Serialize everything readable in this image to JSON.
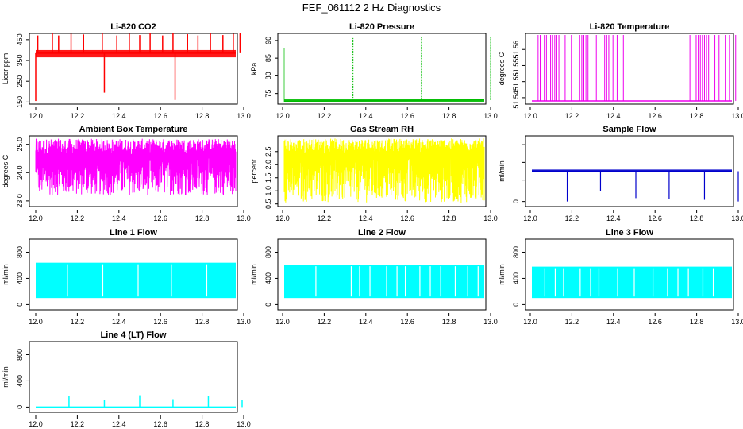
{
  "title": "FEF_061112  2 Hz Diagnostics",
  "chart_data": [
    {
      "type": "line",
      "title": "Li-820 CO2",
      "ylabel": "Licor ppm",
      "color": "#ff0000",
      "xlim": [
        12.0,
        13.0
      ],
      "ylim": [
        140,
        480
      ],
      "xticks": [
        "12.0",
        "12.2",
        "12.4",
        "12.6",
        "12.8",
        "13.0"
      ],
      "yticks": [
        "150",
        "250",
        "350",
        "450"
      ],
      "series": [
        {
          "x": [
            12.0,
            13.0
          ],
          "y": [
            385,
            385
          ],
          "band": [
            365,
            400
          ],
          "spikes": [
            [
              12.0,
              155
            ],
            [
              12.01,
              470
            ],
            [
              12.08,
              480
            ],
            [
              12.11,
              470
            ],
            [
              12.17,
              478
            ],
            [
              12.23,
              475
            ],
            [
              12.32,
              480
            ],
            [
              12.33,
              195
            ],
            [
              12.39,
              470
            ],
            [
              12.45,
              478
            ],
            [
              12.5,
              472
            ],
            [
              12.55,
              480
            ],
            [
              12.61,
              470
            ],
            [
              12.66,
              480
            ],
            [
              12.67,
              160
            ],
            [
              12.73,
              476
            ],
            [
              12.78,
              470
            ],
            [
              12.84,
              480
            ],
            [
              12.9,
              472
            ],
            [
              12.95,
              478
            ],
            [
              12.99,
              480
            ]
          ]
        }
      ]
    },
    {
      "type": "line",
      "title": "Li-820 Pressure",
      "ylabel": "kPa",
      "color": "#00bb00",
      "xlim": [
        12.0,
        13.0
      ],
      "ylim": [
        72,
        92
      ],
      "xticks": [
        "12.0",
        "12.2",
        "12.4",
        "12.6",
        "12.8",
        "13.0"
      ],
      "yticks": [
        "75",
        "80",
        "85",
        "90"
      ],
      "series": [
        {
          "x": [
            12.0,
            13.0
          ],
          "y": [
            72.8,
            73.2
          ],
          "band": [
            72.6,
            73.4
          ],
          "spikes": [
            [
              12.0,
              88
            ],
            [
              12.33,
              91
            ],
            [
              12.66,
              91
            ],
            [
              13.0,
              91
            ]
          ]
        }
      ]
    },
    {
      "type": "line",
      "title": "Li-820 Temperature",
      "ylabel": "degrees C",
      "color": "#ee00ee",
      "xlim": [
        12.0,
        13.0
      ],
      "ylim": [
        51.543,
        51.565
      ],
      "xticks": [
        "12.0",
        "12.2",
        "12.4",
        "12.6",
        "12.8",
        "13.0"
      ],
      "yticks": [
        "51.545",
        "51.55",
        "51.555",
        "51.56"
      ],
      "series": [
        {
          "x": [
            12.0,
            13.0
          ],
          "y": [
            51.544,
            51.544
          ],
          "toggles": [
            12.03,
            12.04,
            12.06,
            12.07,
            12.09,
            12.1,
            12.11,
            12.12,
            12.13,
            12.16,
            12.19,
            12.23,
            12.24,
            12.25,
            12.26,
            12.27,
            12.31,
            12.35,
            12.36,
            12.37,
            12.39,
            12.41,
            12.44,
            12.76,
            12.79,
            12.8,
            12.81,
            12.82,
            12.83,
            12.84,
            12.85,
            12.88,
            12.9,
            12.93,
            12.95,
            12.98
          ]
        }
      ]
    },
    {
      "type": "line",
      "title": "Ambient Box Temperature",
      "ylabel": "degrees C",
      "color": "#ff00ff",
      "xlim": [
        12.0,
        13.0
      ],
      "ylim": [
        22.8,
        25.3
      ],
      "xticks": [
        "12.0",
        "12.2",
        "12.4",
        "12.6",
        "12.8",
        "13.0"
      ],
      "yticks": [
        "23.0",
        "24.0",
        "25.0"
      ],
      "series": [
        {
          "x": [
            12.0,
            13.0
          ],
          "y": [
            24.6,
            24.7
          ],
          "band": [
            23.2,
            25.2
          ]
        }
      ]
    },
    {
      "type": "line",
      "title": "Gas Stream RH",
      "ylabel": "percent",
      "color": "#ffff00",
      "xlim": [
        12.0,
        13.0
      ],
      "ylim": [
        0.4,
        3.1
      ],
      "xticks": [
        "12.0",
        "12.2",
        "12.4",
        "12.6",
        "12.8",
        "13.0"
      ],
      "yticks": [
        "0.5",
        "1.0",
        "1.5",
        "2.0",
        "2.5"
      ],
      "series": [
        {
          "x": [
            12.0,
            13.0
          ],
          "y": [
            2.4,
            2.5
          ],
          "band": [
            0.55,
            3.0
          ]
        }
      ]
    },
    {
      "type": "line",
      "title": "Sample Flow",
      "ylabel": "ml/min",
      "color": "#0000cc",
      "xlim": [
        12.0,
        13.0
      ],
      "ylim": [
        -0.15,
        1.95
      ],
      "xticks": [
        "12.0",
        "12.2",
        "12.4",
        "12.6",
        "12.8",
        "13.0"
      ],
      "yticks": [
        "0",
        "",
        "",
        ""
      ],
      "series": [
        {
          "x": [
            12.0,
            13.0
          ],
          "y": [
            0.9,
            0.9
          ],
          "band": [
            0.87,
            0.95
          ],
          "drops": [
            [
              12.17,
              0.0
            ],
            [
              12.33,
              0.3
            ],
            [
              12.5,
              0.1
            ],
            [
              12.66,
              0.08
            ],
            [
              12.83,
              0.05
            ],
            [
              13.0,
              0.0
            ]
          ]
        }
      ]
    },
    {
      "type": "line",
      "title": "Line 1 Flow",
      "ylabel": "ml/min",
      "color": "#00ffff",
      "xlim": [
        12.0,
        13.0
      ],
      "ylim": [
        -80,
        1000
      ],
      "xticks": [
        "12.0",
        "12.2",
        "12.4",
        "12.6",
        "12.8",
        "13.0"
      ],
      "yticks": [
        "0",
        "400",
        "800"
      ],
      "series": [
        {
          "x": [
            12.0,
            13.0
          ],
          "y": [
            100,
            640
          ],
          "band": [
            100,
            640
          ],
          "gaps": [
            12.16,
            12.33,
            12.5,
            12.66,
            12.83
          ]
        }
      ]
    },
    {
      "type": "line",
      "title": "Line 2 Flow",
      "ylabel": "ml/min",
      "color": "#00ffff",
      "xlim": [
        12.0,
        13.0
      ],
      "ylim": [
        -80,
        1000
      ],
      "xticks": [
        "12.0",
        "12.2",
        "12.4",
        "12.6",
        "12.8",
        "13.0"
      ],
      "yticks": [
        "0",
        "400",
        "800"
      ],
      "series": [
        {
          "x": [
            12.0,
            13.0
          ],
          "y": [
            100,
            610
          ],
          "band": [
            100,
            610
          ],
          "gaps": [
            12.16,
            12.33,
            12.37,
            12.42,
            12.5,
            12.55,
            12.59,
            12.66,
            12.71,
            12.76,
            12.83,
            12.89,
            12.94
          ]
        }
      ]
    },
    {
      "type": "line",
      "title": "Line 3 Flow",
      "ylabel": "ml/min",
      "color": "#00ffff",
      "xlim": [
        12.0,
        13.0
      ],
      "ylim": [
        -80,
        1000
      ],
      "xticks": [
        "12.0",
        "12.2",
        "12.4",
        "12.6",
        "12.8",
        "13.0"
      ],
      "yticks": [
        "0",
        "400",
        "800"
      ],
      "series": [
        {
          "x": [
            12.0,
            13.0
          ],
          "y": [
            100,
            580
          ],
          "band": [
            100,
            580
          ],
          "gaps": [
            12.07,
            12.12,
            12.16,
            12.24,
            12.29,
            12.33,
            12.42,
            12.5,
            12.59,
            12.66,
            12.71,
            12.76,
            12.83,
            12.88
          ]
        }
      ]
    },
    {
      "type": "line",
      "title": "Line 4 (LT) Flow",
      "ylabel": "ml/min",
      "color": "#00ffff",
      "xlim": [
        12.0,
        13.0
      ],
      "ylim": [
        -80,
        1000
      ],
      "xticks": [
        "12.0",
        "12.2",
        "12.4",
        "12.6",
        "12.8",
        "13.0"
      ],
      "yticks": [
        "0",
        "400",
        "800"
      ],
      "series": [
        {
          "x": [
            12.0,
            13.0
          ],
          "y": [
            0,
            0
          ],
          "spikes": [
            [
              12.16,
              170
            ],
            [
              12.33,
              110
            ],
            [
              12.5,
              180
            ],
            [
              12.66,
              120
            ],
            [
              12.83,
              170
            ],
            [
              13.0,
              110
            ]
          ]
        }
      ]
    }
  ]
}
